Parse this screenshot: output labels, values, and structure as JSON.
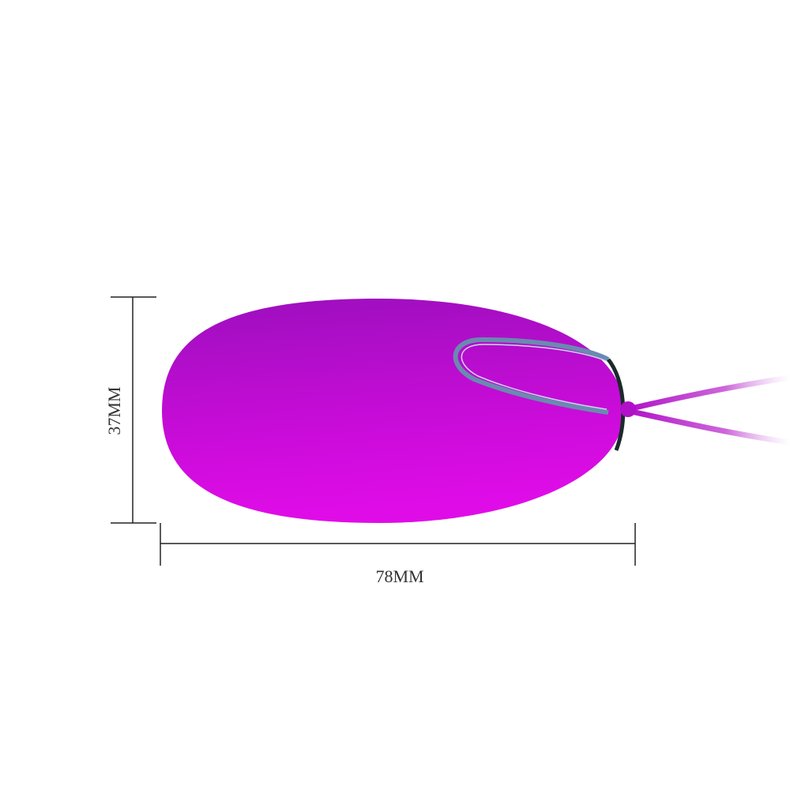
{
  "product": {
    "name": "",
    "body_color_top": "#a00fc0",
    "body_color_bottom": "#e00ce8",
    "trim_color": "#6a8ab0"
  },
  "dimensions": {
    "height_label": "37MM",
    "width_label": "78MM",
    "line_color": "#222222"
  }
}
